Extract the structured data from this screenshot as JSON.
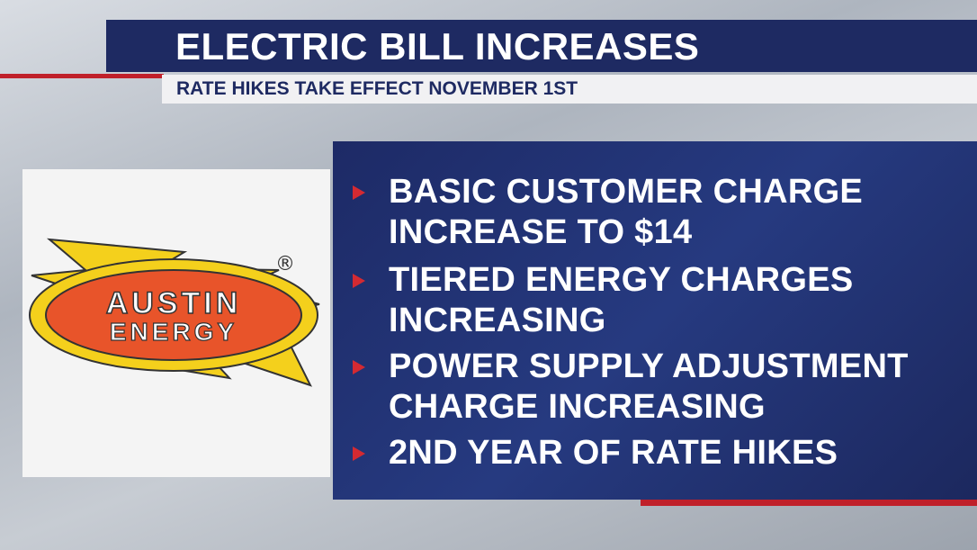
{
  "header": {
    "title": "ELECTRIC BILL INCREASES",
    "subtitle": "RATE HIKES TAKE EFFECT NOVEMBER 1ST"
  },
  "logo": {
    "line1": "AUSTIN",
    "line2": "ENERGY",
    "mark": "®"
  },
  "bullets": [
    [
      "BASIC CUSTOMER CHARGE",
      "INCREASE TO $14"
    ],
    [
      "TIERED ENERGY CHARGES",
      "INCREASING"
    ],
    [
      "POWER SUPPLY ADJUSTMENT",
      "CHARGE INCREASING"
    ],
    [
      "2ND YEAR OF RATE HIKES"
    ]
  ]
}
